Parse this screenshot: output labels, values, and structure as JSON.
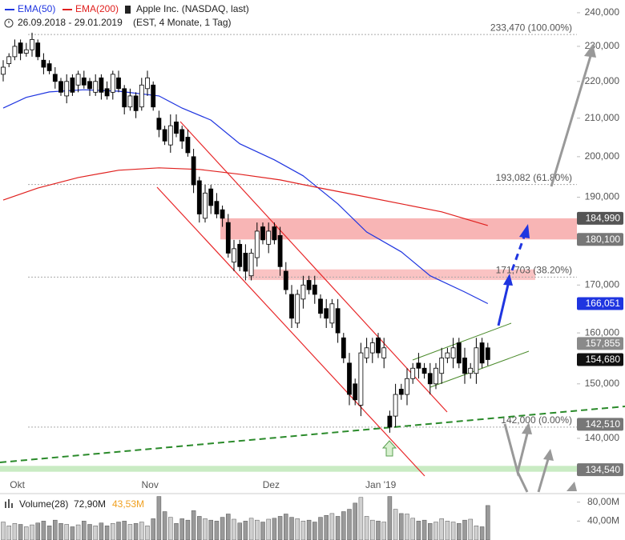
{
  "chart_data": {
    "type": "candlestick",
    "title": "Apple Inc. (NASDAQ, last)",
    "subtitle": "26.09.2018 - 29.01.2019",
    "period": "(EST, 4 Monate, 1 Tag)",
    "categories": [
      null,
      null,
      null,
      "Okt",
      null,
      null,
      null,
      null,
      null,
      null,
      null,
      null,
      null,
      null,
      null,
      null,
      null,
      null,
      null,
      null,
      null,
      null,
      null,
      null,
      null,
      null,
      "Nov",
      null,
      null,
      null,
      null,
      null,
      null,
      null,
      null,
      null,
      null,
      null,
      null,
      null,
      null,
      null,
      null,
      null,
      null,
      null,
      null,
      "Dez",
      null,
      null,
      null,
      null,
      null,
      null,
      null,
      null,
      null,
      null,
      null,
      null,
      null,
      null,
      null,
      null,
      null,
      null,
      "Jan '19",
      null,
      null,
      null,
      null,
      null,
      null,
      null,
      null,
      null,
      null,
      null,
      null,
      null,
      null,
      null,
      null,
      null,
      null
    ],
    "open": [
      222000,
      225000,
      227000,
      231000,
      228000,
      229000,
      231000,
      226000,
      225000,
      222000,
      220000,
      216000,
      221000,
      219000,
      221000,
      220000,
      217000,
      221000,
      218000,
      217000,
      221000,
      218000,
      213000,
      216000,
      213000,
      218000,
      219000,
      210000,
      207000,
      203000,
      209000,
      207000,
      205000,
      200000,
      194000,
      185000,
      192000,
      189000,
      187000,
      184000,
      175000,
      179000,
      177000,
      172000,
      176000,
      183000,
      179000,
      183000,
      181000,
      173000,
      168000,
      162000,
      167000,
      171000,
      170000,
      167000,
      165000,
      162000,
      165000,
      159000,
      154000,
      150000,
      146000,
      155000,
      156000,
      159000,
      155000,
      144000,
      144000,
      149000,
      148000,
      151000,
      154000,
      153000,
      152000,
      150000,
      152000,
      155000,
      155000,
      158000,
      155000,
      152000,
      152000,
      158000,
      157000
    ],
    "high": [
      226000,
      228000,
      232000,
      232000,
      231000,
      234000,
      232000,
      228000,
      226000,
      224000,
      221000,
      222000,
      222000,
      223000,
      223000,
      221000,
      222000,
      222000,
      220000,
      223000,
      223000,
      219000,
      218000,
      217000,
      221000,
      223000,
      220000,
      212000,
      208000,
      211000,
      211000,
      208000,
      207000,
      202000,
      195000,
      193000,
      193000,
      191000,
      188000,
      186000,
      180000,
      180000,
      179000,
      178000,
      184000,
      184000,
      184000,
      184000,
      183000,
      175000,
      170000,
      169000,
      172000,
      172000,
      172000,
      168000,
      167000,
      167000,
      167000,
      160000,
      156000,
      151000,
      158000,
      159000,
      159000,
      160000,
      159000,
      145000,
      150000,
      150000,
      153000,
      154000,
      156000,
      154000,
      154000,
      154000,
      157000,
      157000,
      159000,
      159000,
      157000,
      154000,
      159000,
      159000,
      158000
    ],
    "low": [
      220000,
      224000,
      226000,
      226000,
      227000,
      227000,
      226000,
      222000,
      222000,
      218000,
      216000,
      214000,
      216000,
      217000,
      218000,
      216000,
      216000,
      215000,
      215000,
      215000,
      217000,
      211000,
      212000,
      210000,
      212000,
      216000,
      212000,
      205000,
      203000,
      201000,
      205000,
      202000,
      200000,
      191000,
      184000,
      184000,
      186000,
      185000,
      183000,
      176000,
      173000,
      173000,
      171000,
      171000,
      174000,
      179000,
      177000,
      179000,
      172000,
      168000,
      161000,
      161000,
      165000,
      168000,
      166000,
      163000,
      161000,
      161000,
      158000,
      154000,
      146000,
      146000,
      144000,
      154000,
      154000,
      155000,
      153000,
      141000,
      142000,
      147000,
      146000,
      150000,
      151000,
      151000,
      148000,
      149000,
      150000,
      154000,
      153000,
      153000,
      150000,
      151000,
      150000,
      153000,
      153500
    ],
    "close": [
      224000,
      227000,
      230000,
      228000,
      229000,
      232000,
      227000,
      224000,
      223000,
      220000,
      217000,
      220000,
      217000,
      222000,
      219000,
      218000,
      220000,
      217000,
      216000,
      222000,
      218000,
      213000,
      216000,
      212000,
      219000,
      221000,
      213000,
      207000,
      204000,
      208000,
      206000,
      204000,
      201000,
      193000,
      186000,
      191000,
      188000,
      186000,
      185000,
      177000,
      178000,
      174000,
      173000,
      177000,
      182000,
      180000,
      182000,
      180000,
      174000,
      169000,
      163000,
      168000,
      170000,
      169000,
      168000,
      164000,
      163000,
      166000,
      160000,
      155000,
      148000,
      147000,
      156000,
      157000,
      158000,
      156000,
      157000,
      142000,
      148000,
      148000,
      151000,
      153000,
      153000,
      152000,
      150000,
      153000,
      155000,
      156000,
      157000,
      154000,
      152000,
      153000,
      157000,
      154000,
      154680
    ],
    "up_color": "#ffffff",
    "down_color": "#000000",
    "log_scale": true,
    "ylim": [
      130800,
      243900
    ],
    "yticks": [
      {
        "value": 140000,
        "label": "140,000"
      },
      {
        "value": 150000,
        "label": "150,000"
      },
      {
        "value": 160000,
        "label": "160,000"
      },
      {
        "value": 170000,
        "label": "170,000"
      },
      {
        "value": 180000,
        "label": "180,000"
      },
      {
        "value": 190000,
        "label": "190,000"
      },
      {
        "value": 200000,
        "label": "200,000"
      },
      {
        "value": 210000,
        "label": "210,000"
      },
      {
        "value": 220000,
        "label": "220,000"
      },
      {
        "value": 230000,
        "label": "230,000"
      },
      {
        "value": 240000,
        "label": "240,000"
      }
    ],
    "series": [
      {
        "name": "EMA(50)",
        "color": "#1f35e0",
        "x": [
          0,
          4,
          8,
          14,
          20,
          27,
          31,
          36,
          41,
          47,
          52,
          58,
          63,
          69,
          74,
          80,
          84
        ],
        "values": [
          212700,
          215600,
          217100,
          217700,
          217300,
          216000,
          212700,
          209500,
          203300,
          199200,
          195200,
          188400,
          181800,
          177300,
          172000,
          168500,
          166051
        ]
      },
      {
        "name": "EMA(200)",
        "color": "#e0201e",
        "x": [
          0,
          6,
          13,
          20,
          27,
          34,
          41,
          48,
          55,
          62,
          69,
          76,
          84
        ],
        "values": [
          189300,
          192200,
          194800,
          196600,
          197200,
          196800,
          195600,
          194200,
          192200,
          190300,
          188400,
          186500,
          183300
        ]
      }
    ],
    "fib_levels": [
      {
        "value": 233470,
        "label": "233,470 (100.00%)"
      },
      {
        "value": 193082,
        "label": "193,082 (61.80%)"
      },
      {
        "value": 171703,
        "label": "171,703 (38.20%)"
      },
      {
        "value": 142000,
        "label": "142,000 (0.00%)"
      }
    ],
    "zones": [
      {
        "from": 180100,
        "to": 184990,
        "color": "#f7a8a8"
      },
      {
        "from": 171100,
        "to": 173400,
        "color": "#f9b8b8"
      },
      {
        "from": 134200,
        "to": 135200,
        "color": "#bfe8b8"
      }
    ],
    "price_labels": [
      {
        "value": 184990,
        "label": "184,990",
        "color": "#555555"
      },
      {
        "value": 180100,
        "label": "180,100",
        "color": "#777777"
      },
      {
        "value": 166051,
        "label": "166,051",
        "color": "#1f35e0"
      },
      {
        "value": 157855,
        "label": "157,855",
        "color": "#8a8a8a"
      },
      {
        "value": 154680,
        "label": "154,680",
        "color": "#111111"
      },
      {
        "value": 142510,
        "label": "142,510",
        "color": "#777777"
      },
      {
        "value": 134540,
        "label": "134,540",
        "color": "#777777"
      }
    ],
    "volume": {
      "name": "Volume(28)",
      "current": "72,90M",
      "average": "43,53M",
      "average_color": "#f0a020",
      "ylim": [
        0,
        93
      ],
      "yticks": [
        {
          "value": 40,
          "label": "40,00M"
        },
        {
          "value": 80,
          "label": "80,00M"
        }
      ],
      "values": [
        38,
        30,
        35,
        33,
        28,
        32,
        36,
        40,
        30,
        42,
        35,
        33,
        28,
        32,
        40,
        33,
        30,
        36,
        30,
        35,
        38,
        40,
        33,
        35,
        38,
        30,
        45,
        92,
        60,
        48,
        35,
        45,
        42,
        62,
        50,
        45,
        42,
        40,
        48,
        55,
        44,
        36,
        40,
        46,
        42,
        38,
        44,
        46,
        50,
        55,
        48,
        45,
        40,
        42,
        38,
        48,
        52,
        56,
        50,
        60,
        65,
        78,
        90,
        50,
        42,
        40,
        38,
        92,
        65,
        56,
        55,
        46,
        40,
        42,
        35,
        38,
        45,
        40,
        38,
        35,
        42,
        44,
        30,
        28,
        72.9
      ]
    }
  }
}
